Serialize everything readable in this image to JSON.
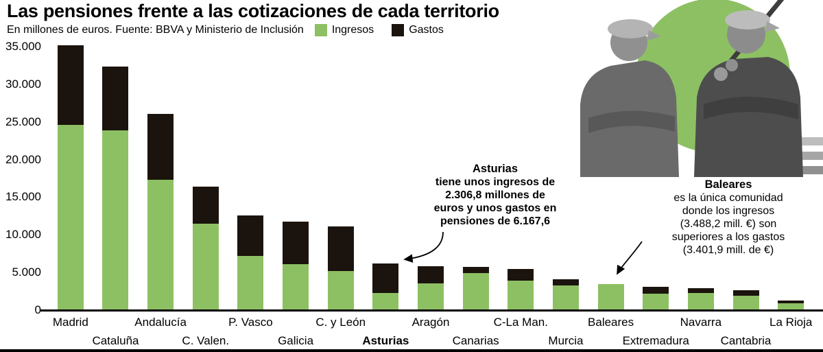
{
  "header": {
    "title": "Las pensiones frente a las cotizaciones de cada territorio",
    "subtitle": "En millones de euros. Fuente: BBVA y Ministerio de Inclusión",
    "legend": [
      {
        "label": "Ingresos",
        "color": "#8dc063"
      },
      {
        "label": "Gastos",
        "color": "#1b130d"
      }
    ]
  },
  "colors": {
    "ingresos": "#8dc063",
    "gastos": "#1b130d"
  },
  "chart_data": {
    "type": "bar",
    "title": "Las pensiones frente a las cotizaciones de cada territorio",
    "unit": "millones de euros",
    "note": "Bar total height = Gastos (black); green overlay from zero = Ingresos",
    "categories": [
      "Madrid",
      "Cataluña",
      "Andalucía",
      "C. Valen.",
      "P. Vasco",
      "Galicia",
      "C. y León",
      "Asturias",
      "Aragón",
      "Canarias",
      "C-La Man.",
      "Murcia",
      "Baleares",
      "Extremadura",
      "Navarra",
      "Cantabria",
      "La Rioja"
    ],
    "series": [
      {
        "name": "Ingresos",
        "color": "#8dc063",
        "values": [
          24600,
          23900,
          17300,
          11500,
          7200,
          6100,
          5200,
          2306.8,
          3550,
          4900,
          3900,
          3300,
          3488.2,
          2200,
          2300,
          1900,
          950
        ]
      },
      {
        "name": "Gastos",
        "color": "#1b130d",
        "values": [
          35200,
          32400,
          26100,
          16400,
          12600,
          11800,
          11100,
          6167.6,
          5800,
          5700,
          5500,
          4100,
          3401.9,
          3100,
          2900,
          2600,
          1300
        ]
      }
    ],
    "y_ticks": [
      "35.000",
      "30.000",
      "25.000",
      "20.000",
      "15.000",
      "10.000",
      "5.000",
      "0"
    ],
    "y_tick_values": [
      35000,
      30000,
      25000,
      20000,
      15000,
      10000,
      5000,
      0
    ],
    "ylim": [
      0,
      35000
    ],
    "grid": "off",
    "legend_position": "top",
    "bold_category": "Asturias"
  },
  "annotations": {
    "asturias": {
      "title": "Asturias",
      "lines": [
        "tiene unos ingresos de",
        "2.306,8 millones de",
        "euros y unos gastos en",
        "pensiones de 6.167,6"
      ]
    },
    "baleares": {
      "title": "Baleares",
      "lines": [
        "es la única comunidad",
        "donde los ingresos",
        "(3.488,2 mill. €) son",
        "superiores a los gastos",
        "(3.401,9 mill. de €)"
      ]
    }
  }
}
